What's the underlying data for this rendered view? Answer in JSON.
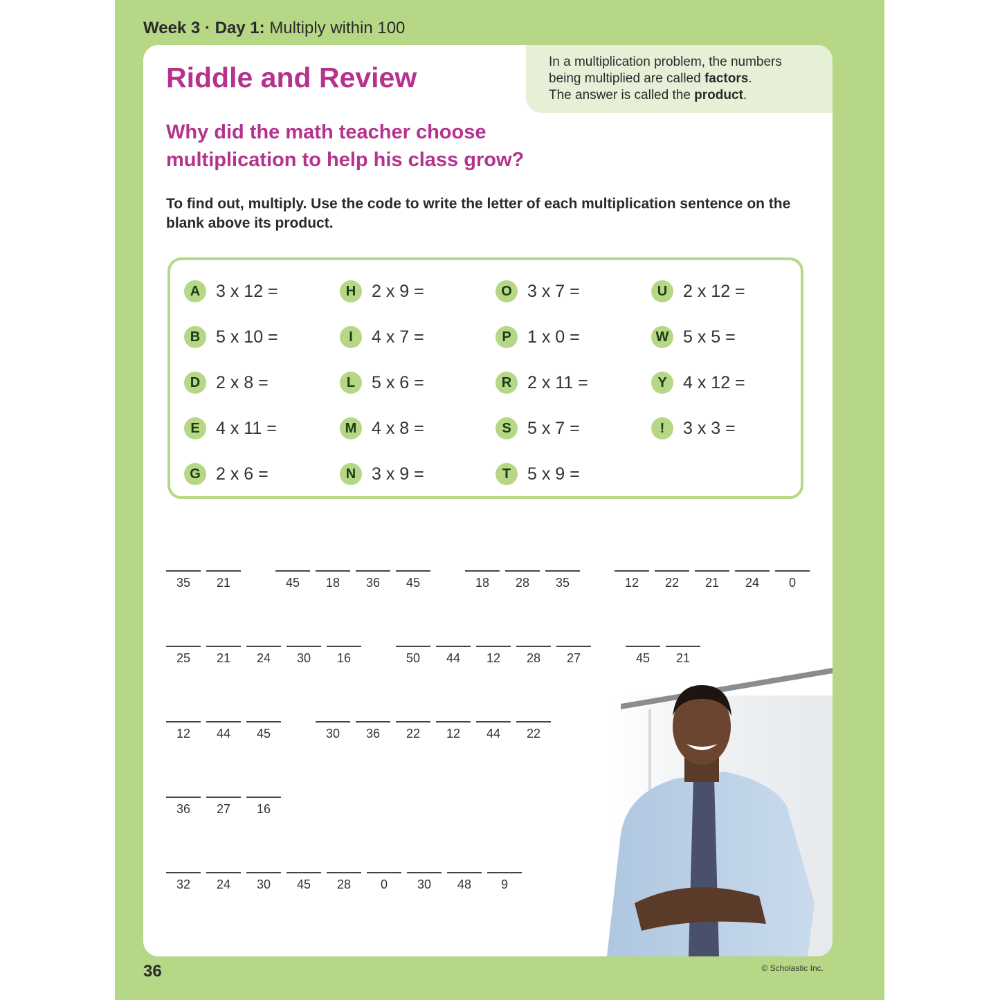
{
  "header": {
    "week": "Week 3 · Day 1:",
    "topic": "Multiply within 100"
  },
  "title": "Riddle and Review",
  "info": {
    "line1": "In a multiplication problem, the numbers",
    "line2a": "being multiplied are called ",
    "line2b": "factors",
    "line2c": ".",
    "line3a": "The answer is called the ",
    "line3b": "product",
    "line3c": "."
  },
  "riddle": {
    "line1": "Why did the math teacher choose",
    "line2": "multiplication to help his class grow?"
  },
  "instructions": "To find out, multiply. Use the code to write the letter of each multiplication sentence on the blank above its product.",
  "code_columns": [
    [
      {
        "letter": "A",
        "problem": "3 x 12 ="
      },
      {
        "letter": "B",
        "problem": "5 x 10 ="
      },
      {
        "letter": "D",
        "problem": "2 x 8 ="
      },
      {
        "letter": "E",
        "problem": "4 x 11 ="
      },
      {
        "letter": "G",
        "problem": "2 x 6 ="
      }
    ],
    [
      {
        "letter": "H",
        "problem": "2 x 9 ="
      },
      {
        "letter": "I",
        "problem": "4 x 7 ="
      },
      {
        "letter": "L",
        "problem": "5 x 6 ="
      },
      {
        "letter": "M",
        "problem": "4 x 8 ="
      },
      {
        "letter": "N",
        "problem": "3 x 9 ="
      }
    ],
    [
      {
        "letter": "O",
        "problem": "3 x 7 ="
      },
      {
        "letter": "P",
        "problem": "1 x 0 ="
      },
      {
        "letter": "R",
        "problem": "2 x 11 ="
      },
      {
        "letter": "S",
        "problem": "5 x 7 ="
      },
      {
        "letter": "T",
        "problem": "5 x 9 ="
      }
    ],
    [
      {
        "letter": "U",
        "problem": "2 x 12 ="
      },
      {
        "letter": "W",
        "problem": "5 x 5 ="
      },
      {
        "letter": "Y",
        "problem": "4 x 12 ="
      },
      {
        "letter": "!",
        "problem": "3 x 3 ="
      }
    ]
  ],
  "answer_rows": [
    [
      [
        "35",
        "21"
      ],
      [
        "45",
        "18",
        "36",
        "45"
      ],
      [
        "18",
        "28",
        "35"
      ],
      [
        "12",
        "22",
        "21",
        "24",
        "0"
      ]
    ],
    [
      [
        "25",
        "21",
        "24",
        "30",
        "16"
      ],
      [
        "50",
        "44",
        "12",
        "28",
        "27"
      ],
      [
        "45",
        "21"
      ]
    ],
    [
      [
        "12",
        "44",
        "45"
      ],
      [
        "30",
        "36",
        "22",
        "12",
        "44",
        "22"
      ]
    ],
    [
      [
        "36",
        "27",
        "16"
      ]
    ],
    [
      [
        "32",
        "24",
        "30",
        "45",
        "28",
        "0",
        "30",
        "48",
        "9"
      ]
    ]
  ],
  "footer": {
    "page_number": "36",
    "copyright": "© Scholastic Inc."
  },
  "colors": {
    "page_green": "#b6d785",
    "title_magenta": "#b5338e",
    "info_bg": "#e6f0d6"
  }
}
